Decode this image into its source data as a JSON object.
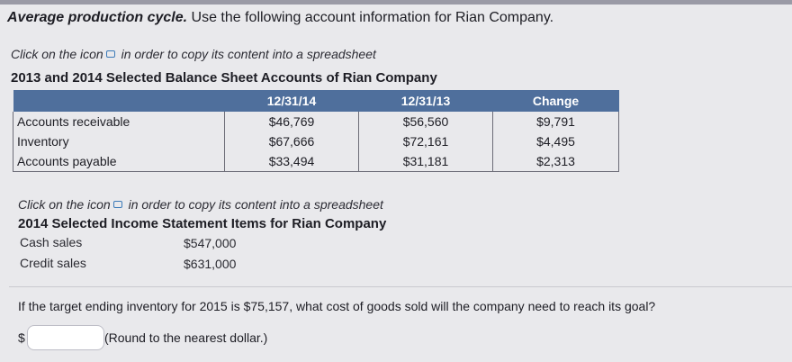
{
  "problem": {
    "title_bold": "Average production cycle.",
    "title_rest": " Use the following account information for Rian Company."
  },
  "copy_note_1": {
    "prefix": "Click on the icon",
    "suffix": "in order to copy its content into a spreadsheet"
  },
  "balance_sheet": {
    "heading": "2013 and 2014 Selected Balance Sheet Accounts of Rian Company",
    "columns": [
      "",
      "12/31/14",
      "12/31/13",
      "Change"
    ],
    "rows": [
      {
        "label": "Accounts receivable",
        "y2014": "$46,769",
        "y2013": "$56,560",
        "change": "$9,791"
      },
      {
        "label": "Inventory",
        "y2014": "$67,666",
        "y2013": "$72,161",
        "change": "$4,495"
      },
      {
        "label": "Accounts payable",
        "y2014": "$33,494",
        "y2013": "$31,181",
        "change": "$2,313"
      }
    ]
  },
  "copy_note_2": {
    "prefix": "Click on the icon",
    "suffix": "in order to copy its content into a spreadsheet"
  },
  "income_statement": {
    "heading": "2014 Selected Income Statement Items for Rian Company",
    "items": [
      {
        "label": "Cash sales",
        "value": "$547,000"
      },
      {
        "label": "Credit sales",
        "value": "$631,000"
      }
    ]
  },
  "question": "If the target ending inventory for 2015 is $75,157, what cost of goods sold will the company need to reach its goal?",
  "answer": {
    "currency": "$",
    "value": "",
    "note": "(Round to the nearest dollar.)"
  },
  "colors": {
    "table_header": "#4f6f9c",
    "icon": "#3b7ab8",
    "background": "#e9e9ec"
  },
  "icons": {
    "copy": "copy-spreadsheet-icon"
  }
}
